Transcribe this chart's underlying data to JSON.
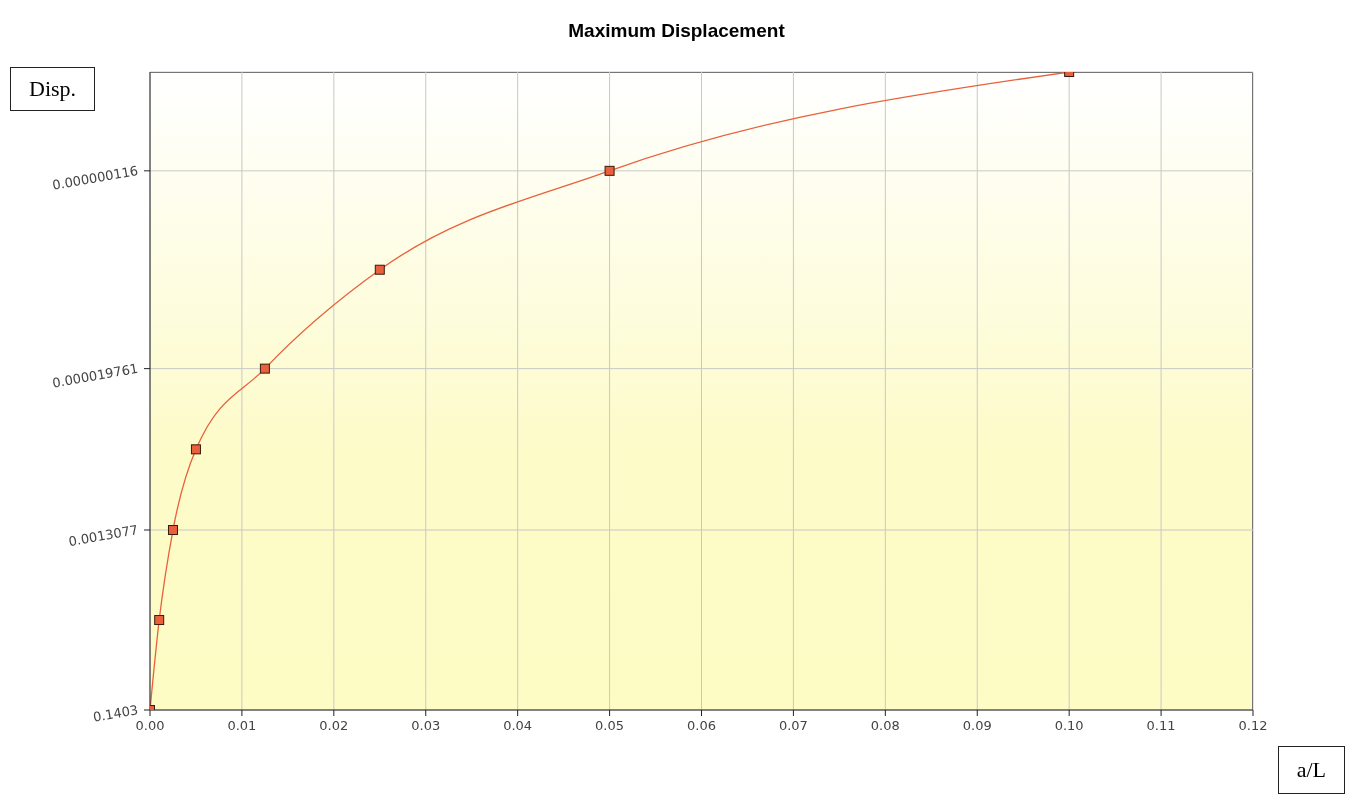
{
  "chart_data": {
    "type": "line",
    "title": "Maximum Displacement",
    "annotations": [
      "Disp.",
      "a/L"
    ],
    "x": [
      0,
      0.001,
      0.0025,
      0.005,
      0.0125,
      0.025,
      0.05,
      0.1
    ],
    "series": [
      {
        "color": "#e8603c",
        "values": [
          0.1403,
          0.01355,
          0.0013077,
          0.0001608,
          1.9761e-05,
          1.514e-06,
          1.16e-07,
          8.9e-09
        ]
      }
    ],
    "log": "y",
    "ylim": [
      0.1403,
      8.9e-09
    ],
    "yticks": [
      {
        "value": 0.1403,
        "label": "0.1403"
      },
      {
        "value": 0.0013077,
        "label": "0.0013077"
      },
      {
        "value": 1.9761e-05,
        "label": "0.000019761"
      },
      {
        "value": 1.16e-07,
        "label": "0.000000116"
      }
    ],
    "xlim": [
      0,
      0.12
    ],
    "xticks": [
      {
        "value": 0,
        "label": "0.00"
      },
      {
        "value": 0.01,
        "label": "0.01"
      },
      {
        "value": 0.02,
        "label": "0.02"
      },
      {
        "value": 0.03,
        "label": "0.03"
      },
      {
        "value": 0.04,
        "label": "0.04"
      },
      {
        "value": 0.05,
        "label": "0.05"
      },
      {
        "value": 0.06,
        "label": "0.06"
      },
      {
        "value": 0.07,
        "label": "0.07"
      },
      {
        "value": 0.08,
        "label": "0.08"
      },
      {
        "value": 0.09,
        "label": "0.09"
      },
      {
        "value": 0.1,
        "label": "0.10"
      },
      {
        "value": 0.11,
        "label": "0.11"
      },
      {
        "value": 0.12,
        "label": "0.12"
      }
    ],
    "grid": true,
    "marker": "square",
    "line_style": "solid"
  }
}
